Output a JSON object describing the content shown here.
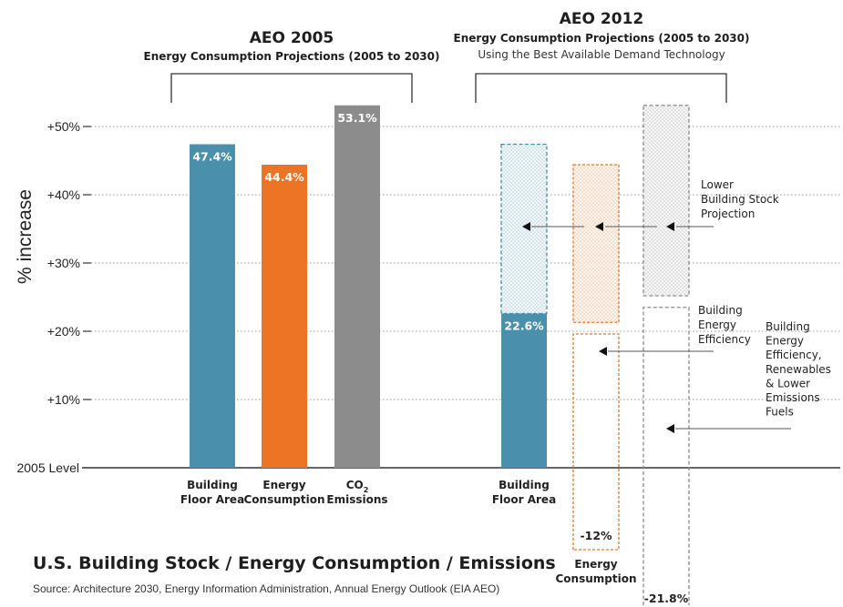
{
  "chart_data": {
    "type": "bar",
    "ylabel": "% increase",
    "ylim": [
      -25,
      55
    ],
    "yticks": [
      {
        "value": 50,
        "label": "+50%"
      },
      {
        "value": 40,
        "label": "+40%"
      },
      {
        "value": 30,
        "label": "+30%"
      },
      {
        "value": 20,
        "label": "+20%"
      },
      {
        "value": 10,
        "label": "+10%"
      },
      {
        "value": 0,
        "label": "2005 Level"
      }
    ],
    "grid": true,
    "groups": [
      {
        "title": "AEO 2005",
        "subtitle": "Energy Consumption Projections (2005 to 2030)",
        "subtitle2": "",
        "bars": [
          {
            "category": [
              "Building",
              "Floor Area"
            ],
            "value": 47.4,
            "label": "47.4%",
            "color": "#4a90ad",
            "style": "solid"
          },
          {
            "category": [
              "Energy",
              "Consumption"
            ],
            "value": 44.4,
            "label": "44.4%",
            "color": "#ec7424",
            "style": "solid"
          },
          {
            "category": [
              "CO",
              "Emissions"
            ],
            "category_sub": "2",
            "value": 53.1,
            "label": "53.1%",
            "color": "#8c8c8c",
            "style": "solid"
          }
        ]
      },
      {
        "title": "AEO 2012",
        "subtitle": "Energy Consumption Projections (2005 to 2030)",
        "subtitle2": "Using the Best Available Demand Technology",
        "bars": [
          {
            "category": [
              "Building",
              "Floor Area"
            ],
            "value": 22.6,
            "label": "22.6%",
            "color": "#4a90ad",
            "style": "solid",
            "ghost_top": 47.4
          },
          {
            "category": [
              "Energy",
              "Consumption"
            ],
            "value": -12,
            "label": "-12%",
            "color": "#ec7424",
            "style": "outline",
            "ghost_top": 44.4,
            "ghost_bottom": 21.3
          },
          {
            "category": [],
            "value": -21.8,
            "label": "-21.8%",
            "color": "#8c8c8c",
            "style": "outline",
            "ghost_top": 53.1,
            "ghost_bottom": 25.2
          }
        ]
      }
    ],
    "annotations": [
      {
        "lines": [
          "Lower",
          "Building Stock",
          "Projection"
        ]
      },
      {
        "lines": [
          "Building",
          "Energy",
          "Efficiency"
        ]
      },
      {
        "lines": [
          "Building",
          "Energy",
          "Efficiency,",
          "Renewables",
          "& Lower",
          "Emissions",
          "Fuels"
        ]
      }
    ],
    "title": "U.S. Building Stock / Energy Consumption / Emissions",
    "source": "Source: Architecture 2030, Energy Information Administration, Annual Energy Outlook (EIA AEO)"
  }
}
